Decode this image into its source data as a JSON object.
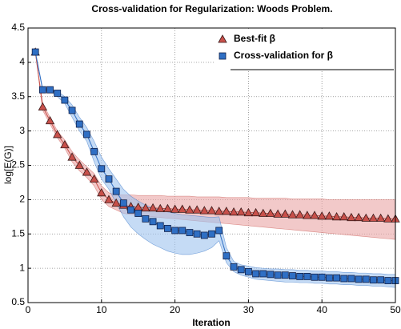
{
  "chart_data": {
    "type": "line",
    "title": "Cross-validation for Regularization: Woods Problem.",
    "xlabel": "Iteration",
    "ylabel": "log[E(G)]",
    "x": [
      1,
      2,
      3,
      4,
      5,
      6,
      7,
      8,
      9,
      10,
      11,
      12,
      13,
      14,
      15,
      16,
      17,
      18,
      19,
      20,
      21,
      22,
      23,
      24,
      25,
      26,
      27,
      28,
      29,
      30,
      31,
      32,
      33,
      34,
      35,
      36,
      37,
      38,
      39,
      40,
      41,
      42,
      43,
      44,
      45,
      46,
      47,
      48,
      49,
      50
    ],
    "xlim": [
      0,
      50
    ],
    "xticks": [
      0,
      10,
      20,
      30,
      40,
      50
    ],
    "ylim": [
      0.5,
      4.5
    ],
    "yticks": [
      0.5,
      1,
      1.5,
      2,
      2.5,
      3,
      3.5,
      4,
      4.5
    ],
    "grid": true,
    "legend": "upper right",
    "series": [
      {
        "name": "Best-fit β",
        "color": "#c8504a",
        "marker": "triangle",
        "band_color": "#eaa5a5",
        "values": [
          4.15,
          3.35,
          3.15,
          2.95,
          2.8,
          2.62,
          2.5,
          2.4,
          2.3,
          2.1,
          2.0,
          1.95,
          1.92,
          1.9,
          1.89,
          1.88,
          1.88,
          1.87,
          1.87,
          1.86,
          1.86,
          1.85,
          1.85,
          1.84,
          1.84,
          1.83,
          1.83,
          1.82,
          1.82,
          1.81,
          1.81,
          1.8,
          1.8,
          1.79,
          1.79,
          1.78,
          1.78,
          1.77,
          1.77,
          1.76,
          1.76,
          1.75,
          1.75,
          1.74,
          1.74,
          1.73,
          1.73,
          1.73,
          1.72,
          1.72
        ],
        "band": {
          "upper": [
            4.15,
            3.4,
            3.2,
            3.0,
            2.87,
            2.7,
            2.58,
            2.48,
            2.38,
            2.2,
            2.1,
            2.07,
            2.07,
            2.07,
            2.06,
            2.06,
            2.06,
            2.06,
            2.05,
            2.05,
            2.05,
            2.05,
            2.04,
            2.04,
            2.04,
            2.04,
            2.03,
            2.03,
            2.03,
            2.03,
            2.02,
            2.02,
            2.02,
            2.02,
            2.02,
            2.01,
            2.01,
            2.01,
            2.01,
            2.01,
            2.0,
            2.0,
            2.0,
            2.0,
            2.0,
            2.0,
            2.0,
            2.0,
            2.0,
            2.0
          ],
          "lower": [
            4.15,
            3.3,
            3.1,
            2.9,
            2.75,
            2.55,
            2.42,
            2.32,
            2.2,
            2.0,
            1.9,
            1.85,
            1.8,
            1.78,
            1.77,
            1.76,
            1.75,
            1.74,
            1.73,
            1.72,
            1.71,
            1.7,
            1.69,
            1.68,
            1.67,
            1.66,
            1.65,
            1.64,
            1.63,
            1.62,
            1.61,
            1.6,
            1.59,
            1.58,
            1.57,
            1.56,
            1.55,
            1.54,
            1.53,
            1.52,
            1.51,
            1.5,
            1.49,
            1.48,
            1.47,
            1.46,
            1.45,
            1.44,
            1.43,
            1.42
          ]
        }
      },
      {
        "name": "Cross-validation for β",
        "color": "#2f6fc4",
        "marker": "square",
        "band_color": "#9ec3ee",
        "values": [
          4.15,
          3.6,
          3.6,
          3.55,
          3.45,
          3.3,
          3.1,
          2.95,
          2.7,
          2.45,
          2.3,
          2.12,
          1.95,
          1.85,
          1.8,
          1.72,
          1.68,
          1.62,
          1.58,
          1.55,
          1.55,
          1.52,
          1.5,
          1.48,
          1.5,
          1.55,
          1.18,
          1.02,
          0.98,
          0.95,
          0.92,
          0.92,
          0.91,
          0.9,
          0.9,
          0.89,
          0.88,
          0.88,
          0.87,
          0.87,
          0.86,
          0.86,
          0.85,
          0.85,
          0.84,
          0.84,
          0.83,
          0.83,
          0.82,
          0.82
        ],
        "band": {
          "upper": [
            4.15,
            3.62,
            3.62,
            3.58,
            3.5,
            3.38,
            3.2,
            3.05,
            2.85,
            2.62,
            2.45,
            2.3,
            2.15,
            2.05,
            1.98,
            1.92,
            1.88,
            1.85,
            1.82,
            1.8,
            1.78,
            1.77,
            1.76,
            1.75,
            1.74,
            1.75,
            1.3,
            1.1,
            1.05,
            1.03,
            1.01,
            1.0,
            0.99,
            0.99,
            0.98,
            0.98,
            0.97,
            0.97,
            0.96,
            0.96,
            0.95,
            0.95,
            0.94,
            0.94,
            0.93,
            0.93,
            0.92,
            0.92,
            0.91,
            0.91
          ],
          "lower": [
            4.15,
            3.58,
            3.58,
            3.5,
            3.4,
            3.2,
            3.0,
            2.85,
            2.55,
            2.3,
            2.15,
            1.95,
            1.75,
            1.6,
            1.5,
            1.42,
            1.35,
            1.3,
            1.25,
            1.22,
            1.2,
            1.2,
            1.22,
            1.25,
            1.3,
            1.4,
            1.08,
            0.95,
            0.9,
            0.87,
            0.84,
            0.83,
            0.82,
            0.81,
            0.8,
            0.8,
            0.79,
            0.79,
            0.78,
            0.78,
            0.77,
            0.77,
            0.76,
            0.76,
            0.75,
            0.75,
            0.74,
            0.74,
            0.73,
            0.72
          ]
        }
      }
    ]
  }
}
